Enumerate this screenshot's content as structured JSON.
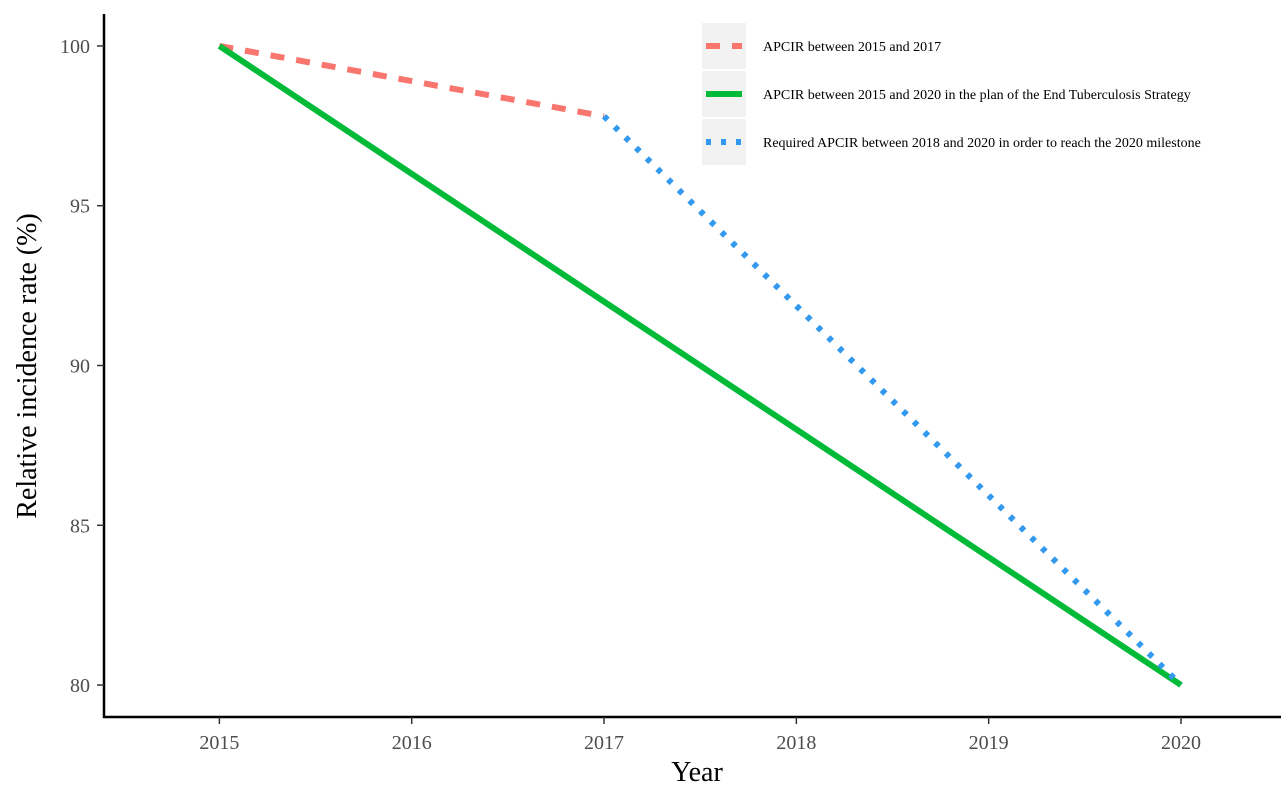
{
  "chart_data": {
    "type": "line",
    "title": "",
    "xlabel": "Year",
    "ylabel": "Relative incidence rate (%)",
    "xlim": [
      2014.4,
      2020.52
    ],
    "ylim": [
      79.0,
      101.0
    ],
    "x_ticks": [
      2015,
      2016,
      2017,
      2018,
      2019,
      2020
    ],
    "y_ticks": [
      80,
      85,
      90,
      95,
      100
    ],
    "x_tick_labels": [
      "2015",
      "2016",
      "2017",
      "2018",
      "2019",
      "2020"
    ],
    "y_tick_labels": [
      "80",
      "85",
      "90",
      "95",
      "100"
    ],
    "grid": false,
    "legend_position": "top-right",
    "series": [
      {
        "name": "APCIR between 2015 and 2017",
        "color": "#F8766D",
        "line_style": "dashed",
        "x": [
          2015,
          2017
        ],
        "y": [
          100,
          97.8
        ]
      },
      {
        "name": "APCIR between 2015 and 2020 in the plan of the End Tuberculosis Strategy",
        "color": "#00BA38",
        "line_style": "solid",
        "x": [
          2015,
          2020
        ],
        "y": [
          100,
          80
        ]
      },
      {
        "name": "Required APCIR between 2018 and 2020 in order to reach the 2020 milestone",
        "color": "#3399EE",
        "line_style": "dotted",
        "x": [
          2017,
          2020
        ],
        "y": [
          97.8,
          80
        ]
      }
    ]
  }
}
